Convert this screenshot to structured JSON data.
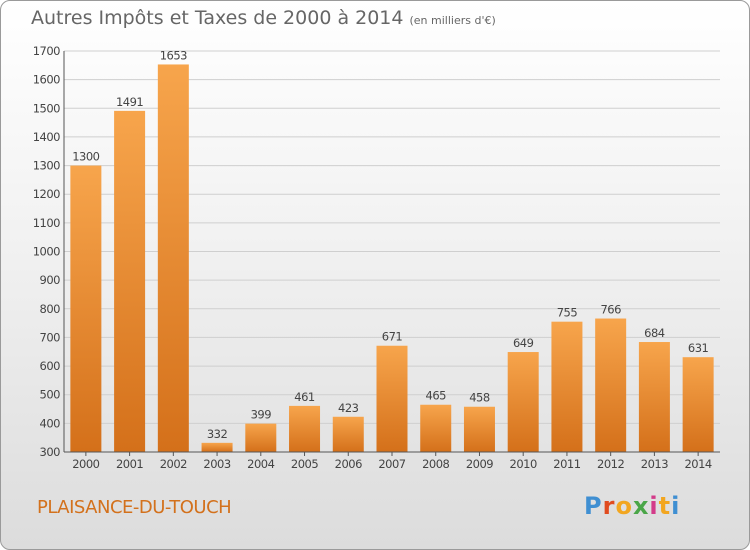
{
  "header": {
    "title": "Autres Impôts et Taxes de 2000 à 2014",
    "unit": "(en milliers d'€)"
  },
  "footer": {
    "commune": "PLAISANCE-DU-TOUCH",
    "logo_text": "Proxiti",
    "logo_colors": [
      "#3f8fd2",
      "#e04b1f",
      "#f2a620",
      "#4aa648",
      "#d33b8a",
      "#f2a620",
      "#3f8fd2"
    ]
  },
  "colors": {
    "bar_light": "#f7a54c",
    "bar_dark": "#d4701a",
    "grid": "#cfcfcf",
    "axis_text": "#444444"
  },
  "chart_data": {
    "type": "bar",
    "categories": [
      "2000",
      "2001",
      "2002",
      "2003",
      "2004",
      "2005",
      "2006",
      "2007",
      "2008",
      "2009",
      "2010",
      "2011",
      "2012",
      "2013",
      "2014"
    ],
    "values": [
      1300,
      1491,
      1653,
      332,
      399,
      461,
      423,
      671,
      465,
      458,
      649,
      755,
      766,
      684,
      631
    ],
    "title": "Autres Impôts et Taxes de 2000 à 2014",
    "ylabel": "",
    "xlabel": "",
    "ylim": [
      300,
      1700
    ],
    "yticks": [
      300,
      400,
      500,
      600,
      700,
      800,
      900,
      1000,
      1100,
      1200,
      1300,
      1400,
      1500,
      1600,
      1700
    ],
    "grid": true,
    "legend": "none"
  }
}
